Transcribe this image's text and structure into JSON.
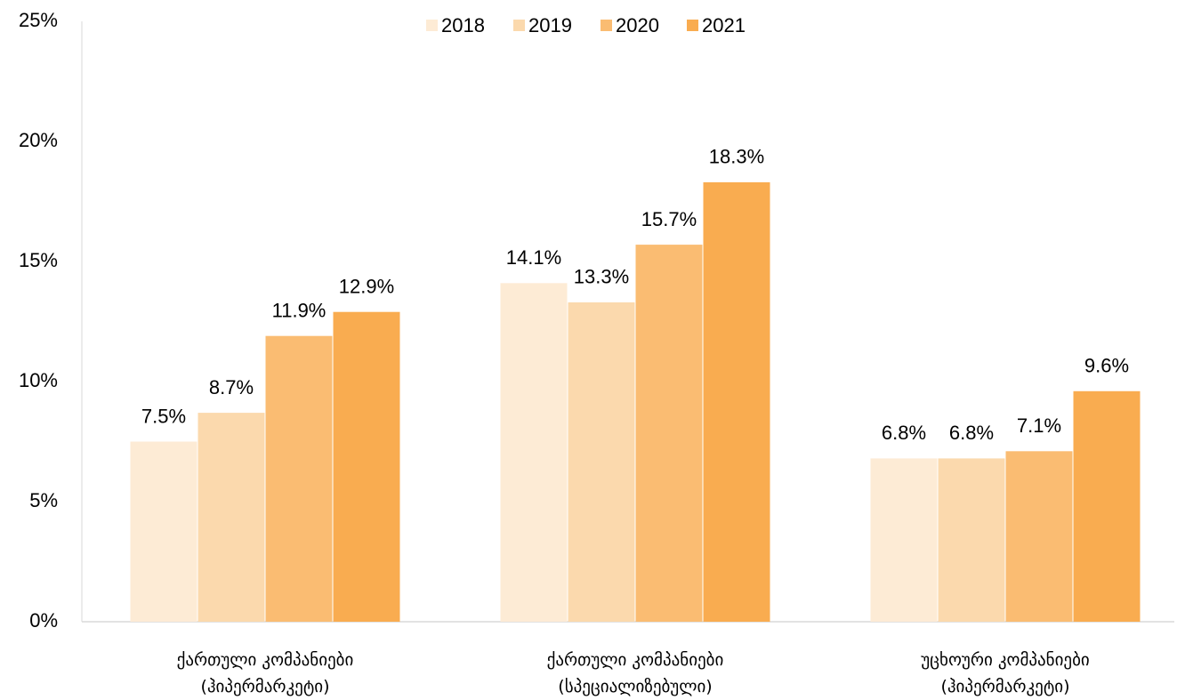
{
  "chart_data": {
    "type": "bar",
    "categories": [
      "ქართული კომპანიები\n(ჰიპერმარკეტი)",
      "ქართული კომპანიები\n(სპეციალიზებული)",
      "უცხოური კომპანიები\n(ჰიპერმარკეტი)"
    ],
    "series": [
      {
        "name": "2018",
        "color": "#fdebd5",
        "values": [
          7.5,
          14.1,
          6.8
        ],
        "value_labels": [
          "7.5%",
          "14.1%",
          "6.8%"
        ]
      },
      {
        "name": "2019",
        "color": "#fbd9ad",
        "values": [
          8.7,
          13.3,
          6.8
        ],
        "value_labels": [
          "8.7%",
          "13.3%",
          "6.8%"
        ]
      },
      {
        "name": "2020",
        "color": "#fabc72",
        "values": [
          11.9,
          15.7,
          7.1
        ],
        "value_labels": [
          "11.9%",
          "15.7%",
          "7.1%"
        ]
      },
      {
        "name": "2021",
        "color": "#f9ac50",
        "values": [
          12.9,
          18.3,
          9.6
        ],
        "value_labels": [
          "12.9%",
          "18.3%",
          "9.6%"
        ]
      }
    ],
    "ylim": [
      0,
      25
    ],
    "yticks": [
      {
        "value": 0,
        "label": "0%"
      },
      {
        "value": 5,
        "label": "5%"
      },
      {
        "value": 10,
        "label": "10%"
      },
      {
        "value": 15,
        "label": "15%"
      },
      {
        "value": 20,
        "label": "20%"
      },
      {
        "value": 25,
        "label": "25%"
      }
    ],
    "legend": "top",
    "grid": false
  }
}
